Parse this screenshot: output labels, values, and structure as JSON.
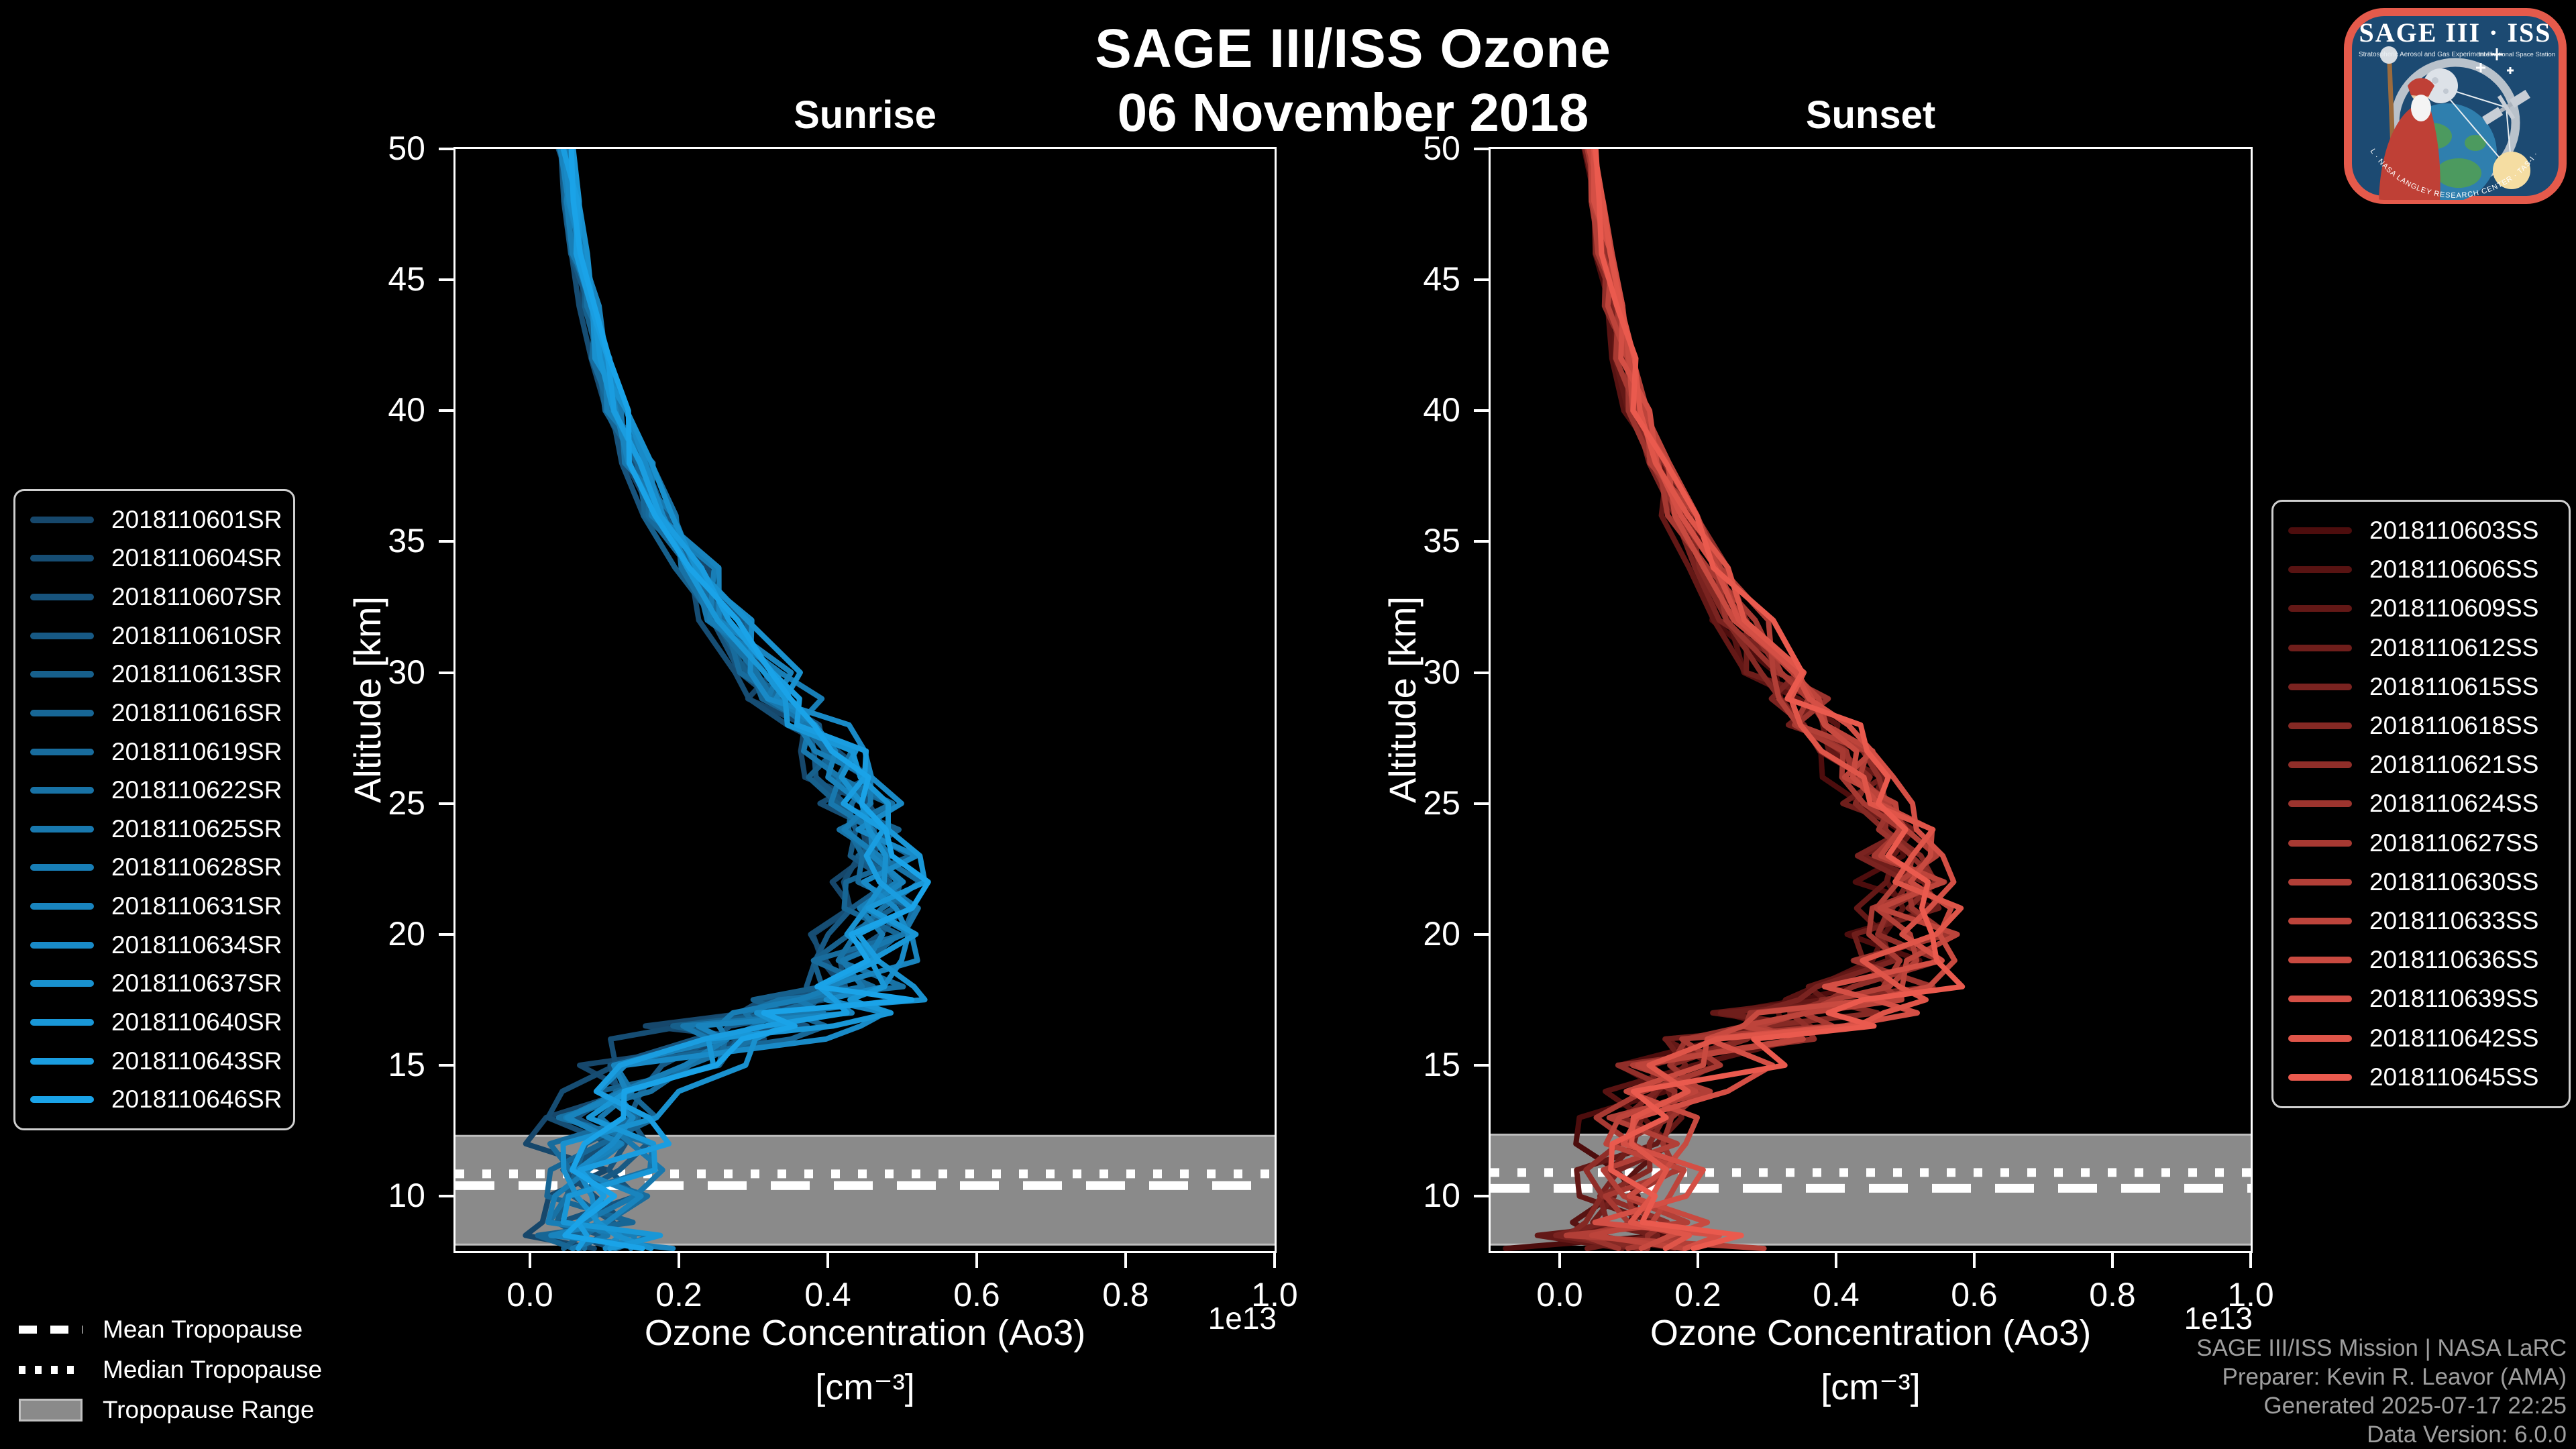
{
  "title": {
    "line1": "SAGE III/ISS Ozone",
    "line2": "06 November 2018"
  },
  "colors": {
    "background": "#000000",
    "frame": "#ffffff",
    "tropopause_line": "#ffffff",
    "tropopause_band": "#8a8a8a",
    "tropopause_band_edge": "#bdbdbd",
    "credits_text": "#9e9e9e",
    "sunrise_color_start": "#16476b",
    "sunrise_color_end": "#1aa3e8",
    "sunset_color_start": "#4d0d0d",
    "sunset_color_end": "#ea5a4e"
  },
  "chart_data": [
    {
      "type": "line",
      "panel": "Sunrise",
      "id": "sunrise",
      "xlabel": "Ozone Concentration (Ao3)",
      "xlabel_unit": "[cm⁻³]",
      "ylabel": "Altitude [km]",
      "x_offset_label": "1e13",
      "xlim": [
        -0.1,
        1.0
      ],
      "ylim": [
        7.9,
        50
      ],
      "xticks": [
        "0.0",
        "0.2",
        "0.4",
        "0.6",
        "0.8",
        "1.0"
      ],
      "yticks": [
        50,
        45,
        40,
        35,
        30,
        25,
        20,
        15,
        10
      ],
      "grid": false,
      "altitudes_km": [
        50,
        48,
        46,
        44,
        42,
        40,
        38,
        36,
        34,
        32,
        30,
        29,
        28,
        27,
        26,
        25,
        24,
        23,
        22,
        21,
        20,
        19,
        18,
        17.5,
        17,
        16.5,
        16,
        15,
        14,
        13,
        12,
        11,
        10,
        9,
        8.5,
        8
      ],
      "mean_concentration_1e13": [
        0.048,
        0.056,
        0.066,
        0.079,
        0.096,
        0.118,
        0.145,
        0.18,
        0.222,
        0.27,
        0.32,
        0.348,
        0.376,
        0.404,
        0.428,
        0.448,
        0.462,
        0.472,
        0.476,
        0.47,
        0.455,
        0.442,
        0.432,
        0.415,
        0.37,
        0.32,
        0.265,
        0.175,
        0.125,
        0.105,
        0.1,
        0.1,
        0.092,
        0.09,
        0.095,
        0.1
      ],
      "spread_1e13": [
        0.006,
        0.007,
        0.008,
        0.009,
        0.01,
        0.012,
        0.014,
        0.017,
        0.02,
        0.024,
        0.028,
        0.03,
        0.032,
        0.034,
        0.034,
        0.034,
        0.034,
        0.034,
        0.036,
        0.038,
        0.042,
        0.05,
        0.062,
        0.07,
        0.08,
        0.085,
        0.085,
        0.07,
        0.058,
        0.055,
        0.055,
        0.055,
        0.052,
        0.055,
        0.058,
        0.06
      ],
      "series": [
        "2018110601SR",
        "2018110604SR",
        "2018110607SR",
        "2018110610SR",
        "2018110613SR",
        "2018110616SR",
        "2018110619SR",
        "2018110622SR",
        "2018110625SR",
        "2018110628SR",
        "2018110631SR",
        "2018110634SR",
        "2018110637SR",
        "2018110640SR",
        "2018110643SR",
        "2018110646SR"
      ],
      "color_start": "#16476b",
      "color_end": "#1aa3e8",
      "tropopause": {
        "mean_km": 10.4,
        "median_km": 10.85,
        "range_top_km": 12.3,
        "range_bottom_km": 8.15
      }
    },
    {
      "type": "line",
      "panel": "Sunset",
      "id": "sunset",
      "xlabel": "Ozone Concentration (Ao3)",
      "xlabel_unit": "[cm⁻³]",
      "ylabel": "Altitude [km]",
      "x_offset_label": "1e13",
      "xlim": [
        -0.1,
        1.0
      ],
      "ylim": [
        7.9,
        50
      ],
      "xticks": [
        "0.0",
        "0.2",
        "0.4",
        "0.6",
        "0.8",
        "1.0"
      ],
      "yticks": [
        50,
        45,
        40,
        35,
        30,
        25,
        20,
        15,
        10
      ],
      "grid": false,
      "altitudes_km": [
        50,
        48,
        46,
        44,
        42,
        40,
        38,
        36,
        34,
        32,
        30,
        29,
        28,
        27,
        26,
        25,
        24,
        23,
        22,
        21,
        20,
        19,
        18,
        17.5,
        17,
        16.5,
        16,
        15,
        14,
        13,
        12,
        11,
        10,
        9,
        8.5,
        8
      ],
      "mean_concentration_1e13": [
        0.046,
        0.054,
        0.064,
        0.077,
        0.094,
        0.115,
        0.142,
        0.176,
        0.218,
        0.266,
        0.318,
        0.348,
        0.378,
        0.408,
        0.435,
        0.458,
        0.478,
        0.492,
        0.502,
        0.508,
        0.505,
        0.488,
        0.455,
        0.42,
        0.37,
        0.32,
        0.27,
        0.19,
        0.145,
        0.125,
        0.118,
        0.112,
        0.105,
        0.105,
        0.115,
        0.125
      ],
      "spread_1e13": [
        0.006,
        0.007,
        0.008,
        0.009,
        0.01,
        0.012,
        0.014,
        0.017,
        0.02,
        0.024,
        0.028,
        0.03,
        0.032,
        0.034,
        0.035,
        0.036,
        0.036,
        0.038,
        0.04,
        0.044,
        0.048,
        0.058,
        0.072,
        0.078,
        0.085,
        0.088,
        0.088,
        0.075,
        0.062,
        0.058,
        0.058,
        0.058,
        0.055,
        0.065,
        0.085,
        0.11
      ],
      "series": [
        "2018110603SS",
        "2018110606SS",
        "2018110609SS",
        "2018110612SS",
        "2018110615SS",
        "2018110618SS",
        "2018110621SS",
        "2018110624SS",
        "2018110627SS",
        "2018110630SS",
        "2018110633SS",
        "2018110636SS",
        "2018110639SS",
        "2018110642SS",
        "2018110645SS"
      ],
      "color_start": "#4d0d0d",
      "color_end": "#ea5a4e",
      "tropopause": {
        "mean_km": 10.3,
        "median_km": 10.9,
        "range_top_km": 12.35,
        "range_bottom_km": 8.15
      }
    }
  ],
  "tropopause_legend": {
    "mean": "Mean Tropopause",
    "median": "Median Tropopause",
    "range": "Tropopause Range"
  },
  "credits": {
    "line1": "SAGE III/ISS Mission | NASA LaRC",
    "line2": "Preparer: Kevin R. Leavor (AMA)",
    "line3": "Generated 2025-07-17 22:25",
    "line4": "Data Version: 6.0.0"
  },
  "logo": {
    "title": "SAGE III · ISS",
    "subtitle": "Stratospheric Aerosol and Gas Experiment III",
    "station_label": "International Space Station",
    "border_text": "BALL · NASA LANGLEY RESEARCH CENTER · TAS-I · ESA"
  }
}
